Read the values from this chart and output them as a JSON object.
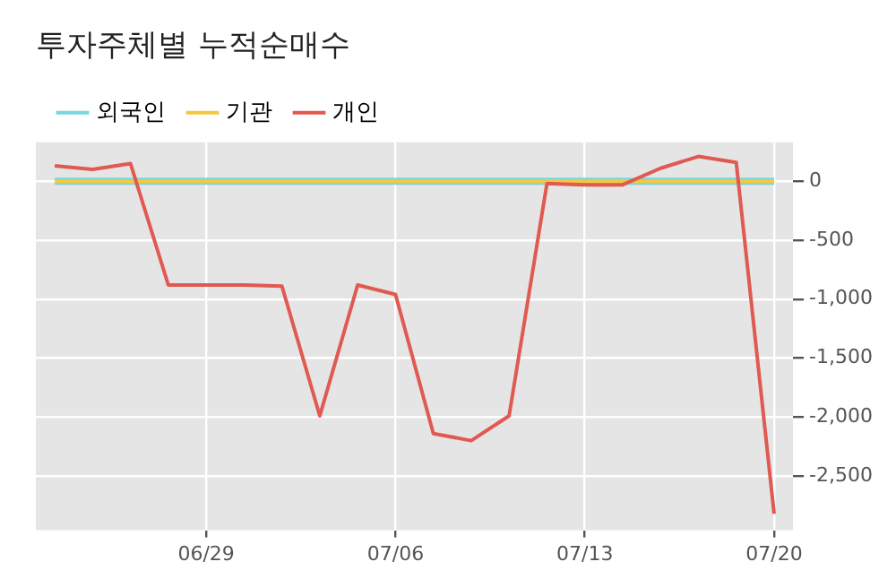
{
  "chart_data": {
    "type": "line",
    "title": "투자주체별 누적순매수",
    "categories": [
      null,
      null,
      null,
      null,
      "06/29",
      null,
      null,
      null,
      null,
      "07/06",
      null,
      null,
      null,
      null,
      "07/13",
      null,
      null,
      null,
      null,
      "07/20"
    ],
    "series": [
      {
        "name": "외국인",
        "color": "#76d7de",
        "values": [
          0,
          0,
          0,
          0,
          0,
          0,
          0,
          0,
          0,
          0,
          0,
          0,
          0,
          0,
          0,
          0,
          0,
          0,
          0,
          0
        ]
      },
      {
        "name": "기관",
        "color": "#f5c842",
        "values": [
          0,
          0,
          0,
          0,
          0,
          0,
          0,
          0,
          0,
          0,
          0,
          0,
          0,
          0,
          0,
          0,
          0,
          0,
          0,
          0
        ]
      },
      {
        "name": "개인",
        "color": "#e05a52",
        "values": [
          130,
          100,
          150,
          -880,
          -880,
          -880,
          -890,
          -1990,
          -880,
          -960,
          -2140,
          -2200,
          -1990,
          -20,
          -30,
          -30,
          110,
          210,
          160,
          -2820
        ]
      }
    ],
    "ylim": [
      -2960,
      330
    ],
    "yticks": [
      {
        "value": 0,
        "label": "0"
      },
      {
        "value": -500,
        "label": "-500"
      },
      {
        "value": -1000,
        "label": "-1,000"
      },
      {
        "value": -1500,
        "label": "-1,500"
      },
      {
        "value": -2000,
        "label": "-2,000"
      },
      {
        "value": -2500,
        "label": "-2,500"
      }
    ],
    "grid": true,
    "legend": "top left",
    "marker": "none",
    "line_style": "solid"
  }
}
